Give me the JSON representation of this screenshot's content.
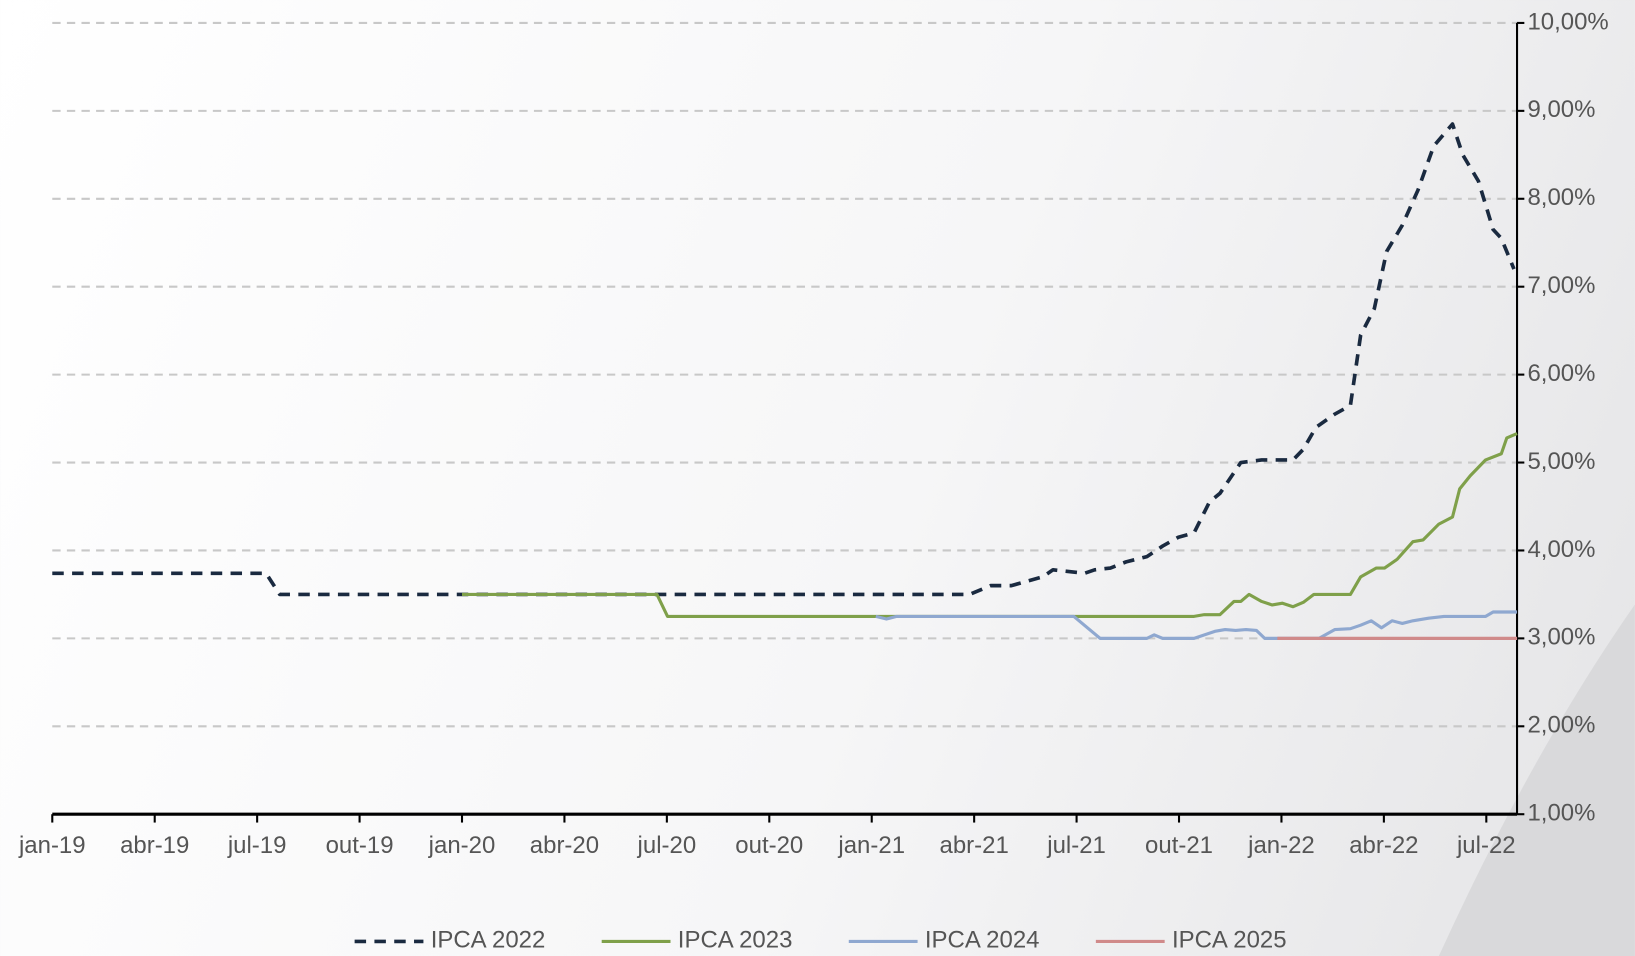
{
  "chart_data": {
    "type": "line",
    "xlim": [
      0,
      42.9
    ],
    "xticks": [
      {
        "value": 0,
        "label": "jan-19"
      },
      {
        "value": 3,
        "label": "abr-19"
      },
      {
        "value": 6,
        "label": "jul-19"
      },
      {
        "value": 9,
        "label": "out-19"
      },
      {
        "value": 12,
        "label": "jan-20"
      },
      {
        "value": 15,
        "label": "abr-20"
      },
      {
        "value": 18,
        "label": "jul-20"
      },
      {
        "value": 21,
        "label": "out-20"
      },
      {
        "value": 24,
        "label": "jan-21"
      },
      {
        "value": 27,
        "label": "abr-21"
      },
      {
        "value": 30,
        "label": "jul-21"
      },
      {
        "value": 33,
        "label": "out-21"
      },
      {
        "value": 36,
        "label": "jan-22"
      },
      {
        "value": 39,
        "label": "abr-22"
      },
      {
        "value": 42,
        "label": "jul-22"
      }
    ],
    "ylim": [
      1,
      10
    ],
    "yticks": [
      {
        "value": 1,
        "label": "1,00%"
      },
      {
        "value": 2,
        "label": "2,00%"
      },
      {
        "value": 3,
        "label": "3,00%"
      },
      {
        "value": 4,
        "label": "4,00%"
      },
      {
        "value": 5,
        "label": "5,00%"
      },
      {
        "value": 6,
        "label": "6,00%"
      },
      {
        "value": 7,
        "label": "7,00%"
      },
      {
        "value": 8,
        "label": "8,00%"
      },
      {
        "value": 9,
        "label": "9,00%"
      },
      {
        "value": 10,
        "label": "10,00%"
      }
    ],
    "grid": true,
    "legend": "bottom",
    "series": [
      {
        "name": "IPCA 2022",
        "color": "#1a2a40",
        "dashed": true,
        "x": [
          0,
          6.26,
          6.66,
          25.95,
          26.87,
          27.48,
          28.09,
          29.01,
          29.31,
          30.23,
          30.53,
          30.99,
          31.45,
          32.06,
          32.52,
          32.98,
          33.44,
          33.89,
          34.2,
          34.81,
          35.42,
          36.34,
          36.64,
          37.01,
          37.56,
          38.02,
          38.32,
          38.72,
          39.08,
          39.54,
          40,
          40.46,
          41.01,
          41.31,
          41.77,
          42.2,
          42.44,
          42.81
        ],
        "values": [
          3.74,
          3.74,
          3.5,
          3.5,
          3.5,
          3.6,
          3.6,
          3.7,
          3.78,
          3.74,
          3.78,
          3.8,
          3.87,
          3.93,
          4.05,
          4.15,
          4.2,
          4.55,
          4.65,
          5.0,
          5.03,
          5.03,
          5.15,
          5.4,
          5.55,
          5.65,
          6.45,
          6.75,
          7.4,
          7.7,
          8.1,
          8.6,
          8.85,
          8.5,
          8.2,
          7.65,
          7.55,
          7.2
        ]
      },
      {
        "name": "IPCA 2023",
        "color": "#7fa04a",
        "dashed": false,
        "x": [
          12,
          17.71,
          18.02,
          33.44,
          33.74,
          34.2,
          34.61,
          34.81,
          35.05,
          35.42,
          35.73,
          36.03,
          36.34,
          36.64,
          36.95,
          38.02,
          38.32,
          38.78,
          39.02,
          39.39,
          39.85,
          40.15,
          40.61,
          41.01,
          41.22,
          41.53,
          41.98,
          42.44,
          42.6,
          42.9
        ],
        "values": [
          3.5,
          3.5,
          3.25,
          3.25,
          3.27,
          3.27,
          3.42,
          3.42,
          3.5,
          3.42,
          3.38,
          3.4,
          3.36,
          3.41,
          3.5,
          3.5,
          3.7,
          3.8,
          3.8,
          3.9,
          4.1,
          4.12,
          4.3,
          4.38,
          4.7,
          4.85,
          5.03,
          5.1,
          5.28,
          5.33
        ]
      },
      {
        "name": "IPCA 2024",
        "color": "#8fa8d0",
        "dashed": false,
        "x": [
          24.12,
          24.43,
          24.73,
          29.92,
          30.38,
          30.69,
          32.06,
          32.27,
          32.52,
          33.44,
          34.05,
          34.35,
          34.66,
          34.96,
          35.27,
          35.51,
          35.88,
          37.1,
          37.56,
          38.02,
          38.32,
          38.63,
          38.93,
          39.24,
          39.54,
          39.85,
          40.31,
          40.76,
          41.98,
          42.2,
          42.9
        ],
        "values": [
          3.25,
          3.22,
          3.25,
          3.25,
          3.1,
          3.0,
          3.0,
          3.04,
          3.0,
          3.0,
          3.08,
          3.1,
          3.09,
          3.1,
          3.09,
          3.0,
          3.0,
          3.0,
          3.1,
          3.11,
          3.15,
          3.2,
          3.12,
          3.2,
          3.17,
          3.2,
          3.23,
          3.25,
          3.25,
          3.3,
          3.3
        ]
      },
      {
        "name": "IPCA 2025",
        "color": "#d08a8a",
        "dashed": false,
        "x": [
          35.88,
          42.9
        ],
        "values": [
          3.0,
          3.0
        ]
      }
    ]
  }
}
